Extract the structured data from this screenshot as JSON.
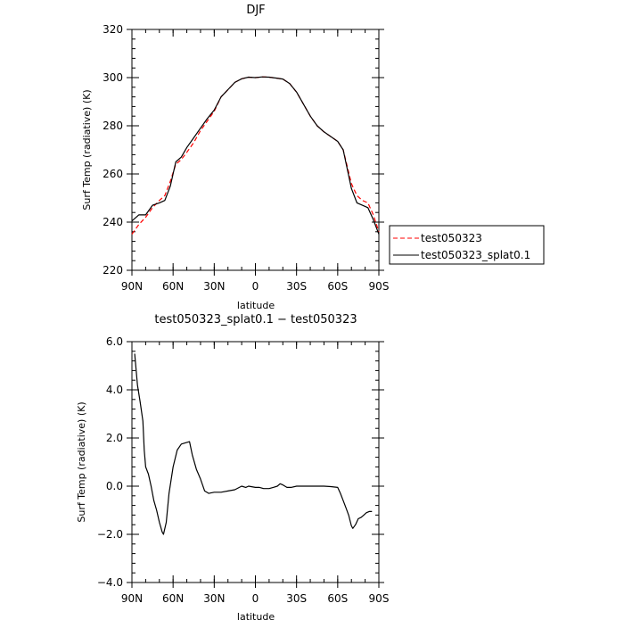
{
  "chart_data": [
    {
      "type": "line",
      "title": "DJF",
      "xlabel": "latitude",
      "ylabel": "Surf Temp (radiative) (K)",
      "xlim": [
        90,
        -90
      ],
      "ylim": [
        220,
        320
      ],
      "x_ticks": [
        90,
        60,
        30,
        0,
        -30,
        -60,
        -90
      ],
      "x_tick_labels": [
        "90N",
        "60N",
        "30N",
        "0",
        "30S",
        "60S",
        "90S"
      ],
      "y_ticks": [
        220,
        240,
        260,
        280,
        300,
        320
      ],
      "y_tick_labels": [
        "220",
        "240",
        "260",
        "280",
        "300",
        "320"
      ],
      "legend_position": "right-bottom, outside plot",
      "grid": false,
      "series": [
        {
          "name": "test050323",
          "color": "#ff0000",
          "style": "dashed",
          "points": [
            [
              90,
              235
            ],
            [
              85,
              239
            ],
            [
              80,
              242
            ],
            [
              75,
              246
            ],
            [
              70,
              249
            ],
            [
              66,
              251
            ],
            [
              62,
              257
            ],
            [
              58,
              264
            ],
            [
              54,
              266
            ],
            [
              50,
              269
            ],
            [
              45,
              273
            ],
            [
              40,
              278
            ],
            [
              35,
              282
            ],
            [
              30,
              286
            ],
            [
              25,
              292
            ],
            [
              20,
              295
            ],
            [
              15,
              298
            ],
            [
              10,
              299.5
            ],
            [
              5,
              300.2
            ],
            [
              0,
              300
            ],
            [
              -5,
              300.3
            ],
            [
              -10,
              300.2
            ],
            [
              -15,
              299.8
            ],
            [
              -20,
              299.4
            ],
            [
              -25,
              297.5
            ],
            [
              -30,
              294
            ],
            [
              -35,
              289
            ],
            [
              -40,
              284
            ],
            [
              -45,
              280
            ],
            [
              -50,
              277.5
            ],
            [
              -55,
              275.5
            ],
            [
              -60,
              273.5
            ],
            [
              -64,
              270
            ],
            [
              -67,
              263
            ],
            [
              -70,
              256
            ],
            [
              -74,
              251
            ],
            [
              -78,
              249
            ],
            [
              -82,
              248
            ],
            [
              -86,
              243
            ],
            [
              -90,
              236
            ]
          ]
        },
        {
          "name": "test050323_splat0.1",
          "color": "#000000",
          "style": "solid",
          "points": [
            [
              90,
              240.5
            ],
            [
              85,
              243
            ],
            [
              80,
              243
            ],
            [
              75,
              247
            ],
            [
              70,
              248
            ],
            [
              66,
              249
            ],
            [
              62,
              255
            ],
            [
              58,
              265
            ],
            [
              54,
              267
            ],
            [
              50,
              271
            ],
            [
              45,
              275
            ],
            [
              40,
              279
            ],
            [
              35,
              283
            ],
            [
              30,
              286.5
            ],
            [
              25,
              292
            ],
            [
              20,
              295
            ],
            [
              15,
              298
            ],
            [
              10,
              299.5
            ],
            [
              5,
              300.2
            ],
            [
              0,
              300
            ],
            [
              -5,
              300.3
            ],
            [
              -10,
              300.2
            ],
            [
              -15,
              299.8
            ],
            [
              -20,
              299.4
            ],
            [
              -25,
              297.5
            ],
            [
              -30,
              294
            ],
            [
              -35,
              289
            ],
            [
              -40,
              284
            ],
            [
              -45,
              280
            ],
            [
              -50,
              277.5
            ],
            [
              -55,
              275.5
            ],
            [
              -60,
              273.5
            ],
            [
              -64,
              270
            ],
            [
              -67,
              262
            ],
            [
              -70,
              254
            ],
            [
              -74,
              248
            ],
            [
              -78,
              247
            ],
            [
              -82,
              246
            ],
            [
              -86,
              241
            ],
            [
              -90,
              235
            ]
          ]
        }
      ]
    },
    {
      "type": "line",
      "title": "test050323_splat0.1 − test050323",
      "xlabel": "latitude",
      "ylabel": "Surf Temp (radiative) (K)",
      "xlim": [
        90,
        -90
      ],
      "ylim": [
        -4,
        6
      ],
      "x_ticks": [
        90,
        60,
        30,
        0,
        -30,
        -60,
        -90
      ],
      "x_tick_labels": [
        "90N",
        "60N",
        "30N",
        "0",
        "30S",
        "60S",
        "90S"
      ],
      "y_ticks": [
        -4,
        -2,
        0,
        2,
        4,
        6
      ],
      "y_tick_labels": [
        "−4.0",
        "−2.0",
        "0.0",
        "2.0",
        "4.0",
        "6.0"
      ],
      "grid": false,
      "series": [
        {
          "color": "#000000",
          "style": "solid",
          "points": [
            [
              88,
              5.5
            ],
            [
              86,
              4.2
            ],
            [
              84,
              3.5
            ],
            [
              82,
              2.7
            ],
            [
              81,
              1.5
            ],
            [
              80,
              0.8
            ],
            [
              78,
              0.5
            ],
            [
              76,
              0
            ],
            [
              74,
              -0.6
            ],
            [
              72,
              -1.0
            ],
            [
              70,
              -1.5
            ],
            [
              68,
              -1.9
            ],
            [
              67,
              -2.0
            ],
            [
              65,
              -1.5
            ],
            [
              63,
              -0.3
            ],
            [
              60,
              0.8
            ],
            [
              57,
              1.5
            ],
            [
              54,
              1.75
            ],
            [
              51,
              1.8
            ],
            [
              48,
              1.85
            ],
            [
              46,
              1.3
            ],
            [
              43,
              0.7
            ],
            [
              40,
              0.3
            ],
            [
              37,
              -0.2
            ],
            [
              34,
              -0.3
            ],
            [
              30,
              -0.25
            ],
            [
              25,
              -0.25
            ],
            [
              20,
              -0.2
            ],
            [
              15,
              -0.15
            ],
            [
              10,
              0
            ],
            [
              7,
              -0.05
            ],
            [
              5,
              0
            ],
            [
              0,
              -0.05
            ],
            [
              -3,
              -0.05
            ],
            [
              -6,
              -0.1
            ],
            [
              -10,
              -0.1
            ],
            [
              -13,
              -0.05
            ],
            [
              -16,
              0
            ],
            [
              -18,
              0.1
            ],
            [
              -20,
              0.05
            ],
            [
              -23,
              -0.05
            ],
            [
              -26,
              -0.05
            ],
            [
              -30,
              0
            ],
            [
              -40,
              0
            ],
            [
              -50,
              0
            ],
            [
              -55,
              -0.02
            ],
            [
              -60,
              -0.05
            ],
            [
              -62,
              -0.3
            ],
            [
              -64,
              -0.6
            ],
            [
              -66,
              -0.9
            ],
            [
              -68,
              -1.2
            ],
            [
              -70,
              -1.65
            ],
            [
              -71,
              -1.75
            ],
            [
              -73,
              -1.6
            ],
            [
              -75,
              -1.35
            ],
            [
              -77,
              -1.3
            ],
            [
              -79,
              -1.2
            ],
            [
              -81,
              -1.1
            ],
            [
              -83,
              -1.05
            ],
            [
              -85,
              -1.05
            ]
          ]
        }
      ]
    }
  ]
}
